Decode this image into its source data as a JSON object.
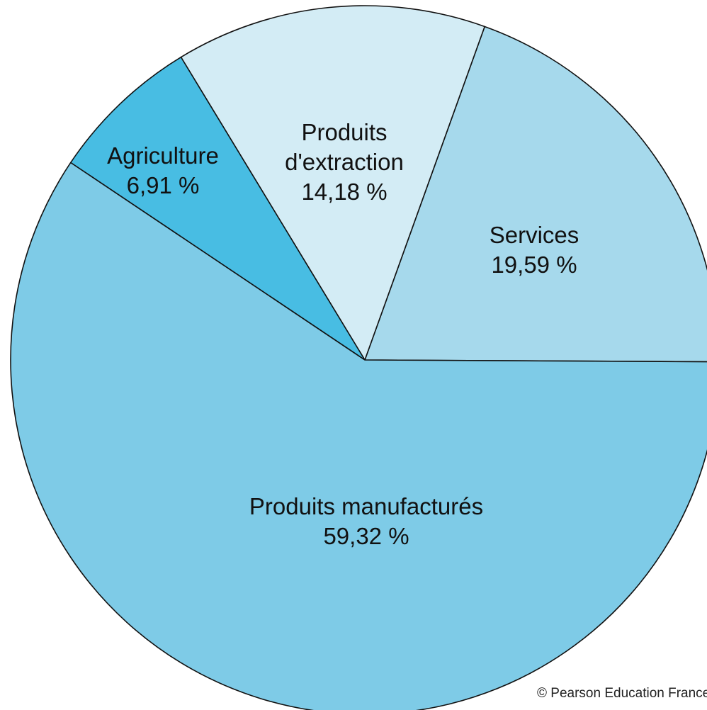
{
  "chart_data": {
    "type": "pie",
    "title": "",
    "slices": [
      {
        "label": "Services",
        "value": 19.59,
        "value_label": "19,59 %",
        "color": "#a6d9ec"
      },
      {
        "label": "Produits d'extraction",
        "value": 14.18,
        "value_label": "14,18 %",
        "color": "#d3ecf5"
      },
      {
        "label": "Agriculture",
        "value": 6.91,
        "value_label": "6,91 %",
        "color": "#48bde3"
      },
      {
        "label": "Produits manufacturés",
        "value": 59.32,
        "value_label": "59,32 %",
        "color": "#7ecbe7"
      }
    ],
    "legend": "none",
    "label_placement": "inside"
  },
  "copyright": "© Pearson Education France"
}
